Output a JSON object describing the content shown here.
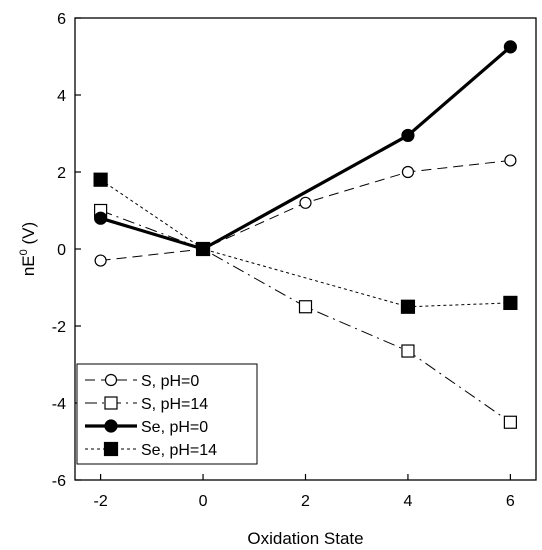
{
  "chart_data": {
    "type": "line",
    "xlabel": "Oxidation State",
    "ylabel_main": "nE",
    "ylabel_sup": "0",
    "ylabel_unit": " (V)",
    "xlim": [
      -2.5,
      6.5
    ],
    "ylim": [
      -6,
      6
    ],
    "xticks": [
      -2,
      0,
      2,
      4,
      6
    ],
    "yticks": [
      -6,
      -4,
      -2,
      0,
      2,
      4,
      6
    ],
    "grid": false,
    "legend_position": "bottom-left",
    "series": [
      {
        "name": "S, pH=0",
        "marker": "circle-open",
        "line": "long-dash",
        "weight": "thin",
        "points": [
          [
            -2,
            -0.3
          ],
          [
            0,
            0
          ],
          [
            2,
            1.2
          ],
          [
            4,
            2.0
          ],
          [
            6,
            2.3
          ]
        ]
      },
      {
        "name": "S, pH=14",
        "marker": "square-open",
        "line": "long-dash-dot",
        "weight": "thin",
        "points": [
          [
            -2,
            1.0
          ],
          [
            0,
            0
          ],
          [
            2,
            -1.5
          ],
          [
            4,
            -2.65
          ],
          [
            6,
            -4.5
          ]
        ]
      },
      {
        "name": "Se, pH=0",
        "marker": "circle-filled",
        "line": "solid",
        "weight": "thick",
        "points": [
          [
            -2,
            0.8
          ],
          [
            0,
            0
          ],
          [
            4,
            2.95
          ],
          [
            6,
            5.25
          ]
        ]
      },
      {
        "name": "Se, pH=14",
        "marker": "square-filled",
        "line": "short-dash",
        "weight": "thin",
        "points": [
          [
            -2,
            1.8
          ],
          [
            0,
            0
          ],
          [
            4,
            -1.5
          ],
          [
            6,
            -1.4
          ]
        ]
      }
    ]
  }
}
